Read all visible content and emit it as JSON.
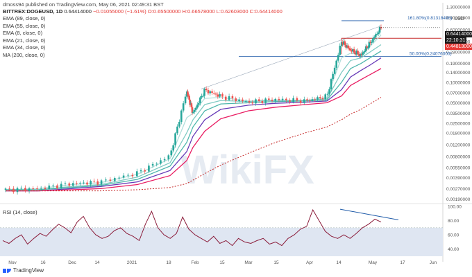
{
  "header": {
    "published": "dmoss94 published on TradingView.com, May 06, 2021 02:49:31 BST",
    "symbol": "BITTREX:DOGEUSD, 1D",
    "ohlc_prefix": "0.64414000",
    "ohlc_change": "−0.01055000 (−1.61%) O:0.65500000 H:0.66578000 L:0.62603000 C:0.64414000"
  },
  "legend": [
    "EMA (89, close, 0)",
    "EMA (55, close, 0)",
    "EMA (8, close, 0)",
    "EMA (21, close, 0)",
    "EMA (34, close, 0)",
    "MA (200, close, 0)"
  ],
  "rsi_label": "RSI (14, close)",
  "currency": "USD",
  "price_tags": {
    "current": "0.64414000",
    "countdown": "22:10:31",
    "support": "0.44813000"
  },
  "watermark": "WikiFX",
  "brand": "TradingView",
  "colors": {
    "candle_up": "#26a69a",
    "candle_down": "#ef5350",
    "ema89": "#e91e63",
    "ema55": "#673ab7",
    "ema8": "#b2dfdb",
    "ema21": "#80cbc4",
    "ema34": "#4db6ac",
    "ma200": "#c62828",
    "rsi": "#8b1c3a",
    "fib": "#1e5aa8",
    "support": "#c62828",
    "rsi_band": "#dfe6f2"
  },
  "chart_data": {
    "type": "line",
    "price_axis": {
      "scale": "log",
      "ticks": [
        "1.30000000",
        "0.90000000",
        "0.60000000",
        "0.40000000",
        "0.28000000",
        "0.19000000",
        "0.14000000",
        "0.10000000",
        "0.07000000",
        "0.05000000",
        "0.03500000",
        "0.02500000",
        "0.01800000",
        "0.01200000",
        "0.00800000",
        "0.00550000",
        "0.00390000",
        "0.00270000",
        "0.00190000"
      ],
      "ylim": [
        0.0017,
        1.3
      ]
    },
    "x_axis": {
      "ticks": [
        "Nov",
        "16",
        "Dec",
        "14",
        "2021",
        "18",
        "Feb",
        "15",
        "Mar",
        "15",
        "Apr",
        "14",
        "May",
        "17",
        "Jun"
      ]
    },
    "annotations": {
      "fib_161_8": "161.80%(0.81318498)",
      "fib_50": "50.00%(0.24076000)",
      "fib_161_value": 0.81318498,
      "fib_50_value": 0.24076,
      "support_value": 0.44813
    },
    "price_series": {
      "name": "DOGEUSD",
      "x": [
        "Nov 1",
        "Nov 16",
        "Dec 1",
        "Dec 14",
        "Jan 1",
        "Jan 18",
        "Jan 28",
        "Feb 1",
        "Feb 8",
        "Feb 15",
        "Mar 1",
        "Mar 15",
        "Apr 1",
        "Apr 10",
        "Apr 16",
        "Apr 20",
        "Apr 25",
        "May 1",
        "May 6"
      ],
      "values": [
        0.0026,
        0.0027,
        0.0032,
        0.0034,
        0.0046,
        0.0083,
        0.075,
        0.035,
        0.077,
        0.062,
        0.051,
        0.056,
        0.053,
        0.062,
        0.4,
        0.3,
        0.25,
        0.38,
        0.644
      ]
    },
    "series": [
      {
        "name": "EMA (8, close, 0)",
        "values": [
          0.0026,
          0.0027,
          0.0031,
          0.0033,
          0.0044,
          0.0075,
          0.03,
          0.035,
          0.058,
          0.06,
          0.053,
          0.055,
          0.054,
          0.06,
          0.23,
          0.27,
          0.26,
          0.34,
          0.5
        ]
      },
      {
        "name": "EMA (21, close, 0)",
        "values": [
          0.0026,
          0.0026,
          0.0029,
          0.0031,
          0.004,
          0.0065,
          0.018,
          0.028,
          0.047,
          0.054,
          0.052,
          0.054,
          0.054,
          0.057,
          0.14,
          0.21,
          0.23,
          0.28,
          0.36
        ]
      },
      {
        "name": "EMA (34, close, 0)",
        "values": [
          0.0026,
          0.0026,
          0.0028,
          0.003,
          0.0037,
          0.0058,
          0.013,
          0.022,
          0.038,
          0.048,
          0.05,
          0.052,
          0.053,
          0.055,
          0.1,
          0.16,
          0.19,
          0.23,
          0.29
        ]
      },
      {
        "name": "EMA (55, close, 0)",
        "values": [
          0.0025,
          0.0025,
          0.0027,
          0.0029,
          0.0034,
          0.005,
          0.0095,
          0.016,
          0.028,
          0.04,
          0.046,
          0.049,
          0.051,
          0.053,
          0.078,
          0.12,
          0.15,
          0.18,
          0.23
        ]
      },
      {
        "name": "EMA (89, close, 0)",
        "values": [
          0.0025,
          0.0025,
          0.0026,
          0.0027,
          0.0031,
          0.0042,
          0.007,
          0.011,
          0.019,
          0.029,
          0.038,
          0.043,
          0.047,
          0.05,
          0.063,
          0.09,
          0.11,
          0.13,
          0.16
        ]
      },
      {
        "name": "MA (200, close, 0)",
        "values": [
          0.0025,
          0.0025,
          0.0025,
          0.0025,
          0.0026,
          0.0028,
          0.0032,
          0.0036,
          0.0045,
          0.006,
          0.009,
          0.013,
          0.018,
          0.022,
          0.028,
          0.034,
          0.04,
          0.048,
          0.06
        ]
      }
    ],
    "rsi": {
      "name": "RSI (14, close)",
      "ticks": [
        "100.00",
        "80.00",
        "60.00",
        "40.00"
      ],
      "ylim": [
        30,
        100
      ],
      "band": [
        30,
        70
      ],
      "values": [
        52,
        48,
        55,
        60,
        47,
        55,
        62,
        58,
        67,
        75,
        70,
        63,
        78,
        86,
        70,
        60,
        55,
        58,
        66,
        70,
        62,
        58,
        52,
        75,
        93,
        70,
        60,
        55,
        62,
        85,
        68,
        60,
        55,
        50,
        58,
        48,
        52,
        45,
        55,
        50,
        48,
        52,
        55,
        47,
        50,
        45,
        55,
        60,
        68,
        72,
        95,
        80,
        65,
        58,
        55,
        60,
        55,
        62,
        70,
        75,
        82,
        78
      ]
    }
  }
}
